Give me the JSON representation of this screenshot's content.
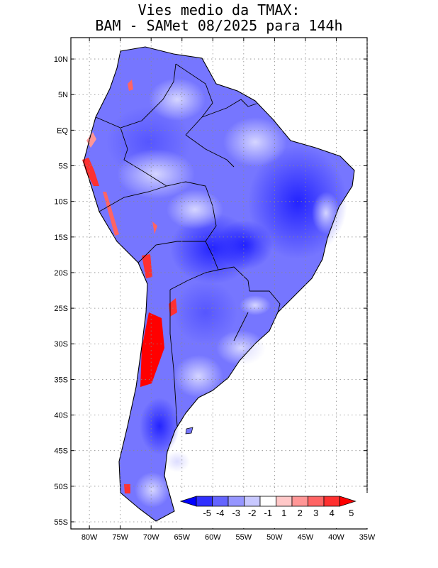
{
  "title": {
    "line1": "Vies medio da TMAX:",
    "line2": "BAM - SAMet 08/2025  para 144h"
  },
  "map": {
    "region": "South America",
    "lat_range": [
      -56,
      13
    ],
    "lon_range": [
      -83,
      -35
    ],
    "lat_labels": [
      {
        "lat": 10,
        "label": "10N"
      },
      {
        "lat": 5,
        "label": "5N"
      },
      {
        "lat": 0,
        "label": "EQ"
      },
      {
        "lat": -5,
        "label": "5S"
      },
      {
        "lat": -10,
        "label": "10S"
      },
      {
        "lat": -15,
        "label": "15S"
      },
      {
        "lat": -20,
        "label": "20S"
      },
      {
        "lat": -25,
        "label": "25S"
      },
      {
        "lat": -30,
        "label": "30S"
      },
      {
        "lat": -35,
        "label": "35S"
      },
      {
        "lat": -40,
        "label": "40S"
      },
      {
        "lat": -45,
        "label": "45S"
      },
      {
        "lat": -50,
        "label": "50S"
      },
      {
        "lat": -55,
        "label": "55S"
      }
    ],
    "lon_labels": [
      {
        "lon": -80,
        "label": "80W"
      },
      {
        "lon": -75,
        "label": "75W"
      },
      {
        "lon": -70,
        "label": "70W"
      },
      {
        "lon": -65,
        "label": "65W"
      },
      {
        "lon": -60,
        "label": "60W"
      },
      {
        "lon": -55,
        "label": "55W"
      },
      {
        "lon": -50,
        "label": "50W"
      },
      {
        "lon": -45,
        "label": "45W"
      },
      {
        "lon": -40,
        "label": "40W"
      },
      {
        "lon": -35,
        "label": "35W"
      }
    ]
  },
  "colorbar": {
    "labels": [
      "-5",
      "-4",
      "-3",
      "-2",
      "-1",
      "1",
      "2",
      "3",
      "4",
      "5"
    ],
    "colors": [
      "#0000ff",
      "#3030ff",
      "#6464ff",
      "#9696ff",
      "#c8c8ff",
      "#ffffff",
      "#ffc8c8",
      "#ff9696",
      "#ff6464",
      "#ff3030",
      "#ff0000"
    ]
  }
}
